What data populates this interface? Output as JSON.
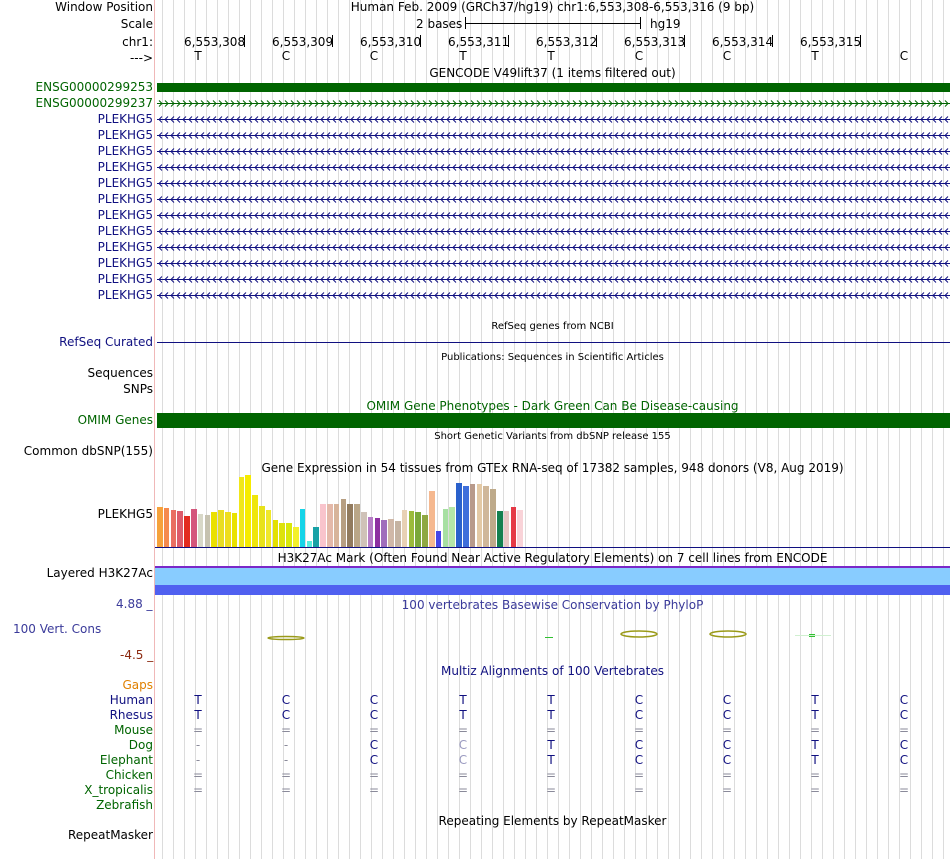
{
  "header": {
    "window_position_label": "Window Position",
    "title": "Human Feb. 2009 (GRCh37/hg19)   chr1:6,553,308-6,553,316 (9 bp)",
    "scale_label": "Scale",
    "scale_value": "2 bases",
    "assembly": "hg19",
    "chrom_label": "chr1:",
    "strand_label": "--->",
    "positions": [
      "6,553,308",
      "6,553,309",
      "6,553,310",
      "6,553,311",
      "6,553,312",
      "6,553,313",
      "6,553,314",
      "6,553,315"
    ],
    "bases": [
      "T",
      "C",
      "C",
      "T",
      "T",
      "C",
      "C",
      "T",
      "C"
    ]
  },
  "gencode": {
    "title": "GENCODE V49lift37 (1 items filtered out)",
    "rows": [
      {
        "label": "ENSG00000299253",
        "style": "solid-green"
      },
      {
        "label": "ENSG00000299237",
        "style": "arrows-right-green"
      },
      {
        "label": "PLEKHG5",
        "style": "arrows-left-blue"
      },
      {
        "label": "PLEKHG5",
        "style": "arrows-left-blue"
      },
      {
        "label": "PLEKHG5",
        "style": "arrows-left-blue"
      },
      {
        "label": "PLEKHG5",
        "style": "arrows-left-blue"
      },
      {
        "label": "PLEKHG5",
        "style": "arrows-left-blue"
      },
      {
        "label": "PLEKHG5",
        "style": "arrows-left-blue"
      },
      {
        "label": "PLEKHG5",
        "style": "arrows-left-blue"
      },
      {
        "label": "PLEKHG5",
        "style": "arrows-left-blue"
      },
      {
        "label": "PLEKHG5",
        "style": "arrows-left-blue"
      },
      {
        "label": "PLEKHG5",
        "style": "arrows-left-blue"
      },
      {
        "label": "PLEKHG5",
        "style": "arrows-left-blue"
      },
      {
        "label": "PLEKHG5",
        "style": "arrows-left-blue"
      }
    ]
  },
  "refseq": {
    "title": "RefSeq genes from NCBI",
    "label": "RefSeq Curated"
  },
  "publications": {
    "title": "Publications: Sequences in Scientific Articles",
    "label1": "Sequences",
    "label2": "SNPs"
  },
  "omim": {
    "title": "OMIM Gene Phenotypes - Dark Green Can Be Disease-causing",
    "label": "OMIM Genes"
  },
  "dbsnp": {
    "title": "Short Genetic Variants from dbSNP release 155",
    "label": "Common dbSNP(155)"
  },
  "gtex": {
    "title": "Gene Expression in 54 tissues from GTEx RNA-seq of 17382 samples, 948 donors (V8, Aug 2019)",
    "label": "PLEKHG5",
    "values": [
      40,
      39,
      37,
      36,
      31,
      38,
      33,
      32,
      35,
      37,
      35,
      34,
      70,
      72,
      52,
      41,
      37,
      27,
      24,
      24,
      20,
      38,
      6,
      20,
      43,
      43,
      43,
      48,
      43,
      43,
      35,
      30,
      29,
      27,
      28,
      26,
      37,
      36,
      35,
      32,
      56,
      16,
      38,
      40,
      64,
      61,
      63,
      63,
      61,
      58,
      36,
      36,
      40,
      37
    ],
    "colors": [
      "#f6a13b",
      "#f58a4d",
      "#e96e62",
      "#dd5b6b",
      "#e32b1f",
      "#d4567c",
      "#d8d8c8",
      "#c6c2b0",
      "#eae000",
      "#e9dd22",
      "#eedd1e",
      "#e9e200",
      "#f0e71a",
      "#f6eb00",
      "#efe60b",
      "#e8e21a",
      "#f0e82a",
      "#e3e000",
      "#dde20c",
      "#d9e80a",
      "#f4f02b",
      "#16d4e8",
      "#55eedd",
      "#18a2a6",
      "#f9c4cc",
      "#e4b9a9",
      "#d7b49a",
      "#b79f82",
      "#927b5e",
      "#baa687",
      "#cfc2b8",
      "#b67cc6",
      "#8e2fa1",
      "#a06dbc",
      "#d0b8a8",
      "#c5b3a2",
      "#e8d1b5",
      "#9bbb3b",
      "#7aa83a",
      "#8fa843",
      "#f5b88f",
      "#4546e8",
      "#a7e0a2",
      "#b5e7a7",
      "#2a61cc",
      "#3f6fdb",
      "#b89a8b",
      "#e3c9a5",
      "#cfb79a",
      "#beaa8a",
      "#13804f",
      "#e5c7c4",
      "#e53946",
      "#f9d3d8"
    ]
  },
  "h3k27ac": {
    "title": "H3K27Ac Mark (Often Found Near Active Regulatory Elements) on 7 cell lines from ENCODE",
    "label": "Layered H3K27Ac"
  },
  "phylop": {
    "title": "100 vertebrates Basewise Conservation by PhyloP",
    "label": "100 Vert. Cons",
    "max": "4.88 _",
    "min": "-4.5 _"
  },
  "multiz": {
    "title": "Multiz Alignments of 100 Vertebrates",
    "gaps_label": "Gaps",
    "species": [
      {
        "name": "Human",
        "bases": [
          "T",
          "C",
          "C",
          "T",
          "T",
          "C",
          "C",
          "T",
          "C"
        ]
      },
      {
        "name": "Rhesus",
        "bases": [
          "T",
          "C",
          "C",
          "T",
          "T",
          "C",
          "C",
          "T",
          "C"
        ]
      },
      {
        "name": "Mouse",
        "bases": [
          "=",
          "=",
          "=",
          "=",
          "=",
          "=",
          "=",
          "=",
          "="
        ]
      },
      {
        "name": "Dog",
        "bases": [
          "-",
          "-",
          "C",
          "C",
          "T",
          "C",
          "C",
          "T",
          "C"
        ]
      },
      {
        "name": "Elephant",
        "bases": [
          "-",
          "-",
          "C",
          "C",
          "T",
          "C",
          "C",
          "T",
          "C"
        ]
      },
      {
        "name": "Chicken",
        "bases": [
          "=",
          "=",
          "=",
          "=",
          "=",
          "=",
          "=",
          "=",
          "="
        ]
      },
      {
        "name": "X_tropicalis",
        "bases": [
          "=",
          "=",
          "=",
          "=",
          "=",
          "=",
          "=",
          "=",
          "="
        ]
      },
      {
        "name": "Zebrafish",
        "bases": [
          "",
          "",
          "",
          "",
          "",
          "",
          "",
          "",
          ""
        ]
      }
    ]
  },
  "repeatmasker": {
    "title": "Repeating Elements by RepeatMasker",
    "label": "RepeatMasker"
  },
  "colors": {
    "green": "#006400",
    "navy": "#101080",
    "blue_text": "#3a3a9a",
    "gaps": "#e08000",
    "h3k_light": "#88ccff",
    "h3k_dark": "#5060f0"
  }
}
